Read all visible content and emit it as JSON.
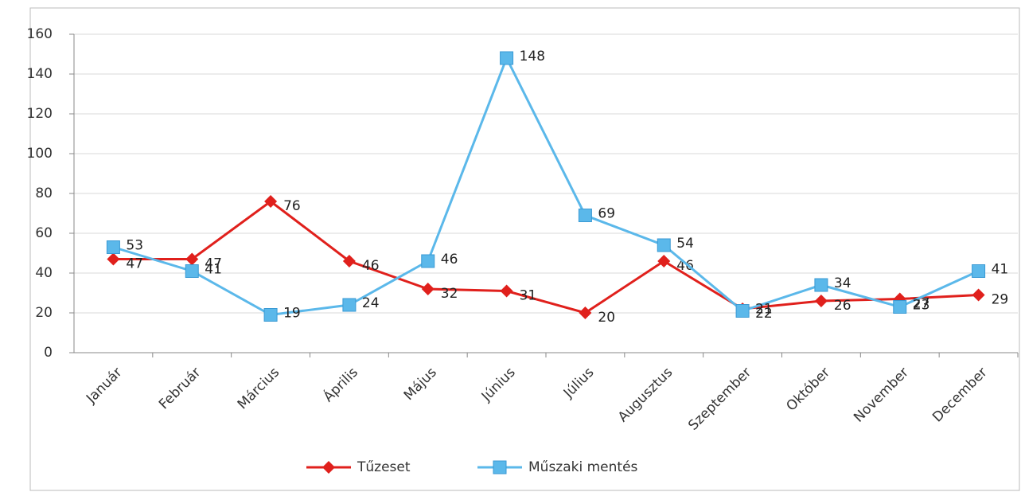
{
  "chart_data": {
    "type": "line",
    "categories": [
      "Január",
      "Február",
      "Március",
      "Április",
      "Május",
      "Június",
      "Július",
      "Augusztus",
      "Szeptember",
      "Október",
      "November",
      "December"
    ],
    "series": [
      {
        "name": "Tűzeset",
        "color": "#e0201c",
        "marker": "diamond",
        "values": [
          47,
          47,
          76,
          46,
          32,
          31,
          20,
          46,
          22,
          26,
          27,
          29
        ]
      },
      {
        "name": "Műszaki mentés",
        "color": "#5bb8ea",
        "marker": "square",
        "values": [
          53,
          41,
          19,
          24,
          46,
          148,
          69,
          54,
          21,
          34,
          23,
          41
        ]
      }
    ],
    "ylim": [
      0,
      160
    ],
    "yticks": [
      0,
      20,
      40,
      60,
      80,
      100,
      120,
      140,
      160
    ],
    "grid": true,
    "legend": "bottom",
    "data_labels": true
  }
}
